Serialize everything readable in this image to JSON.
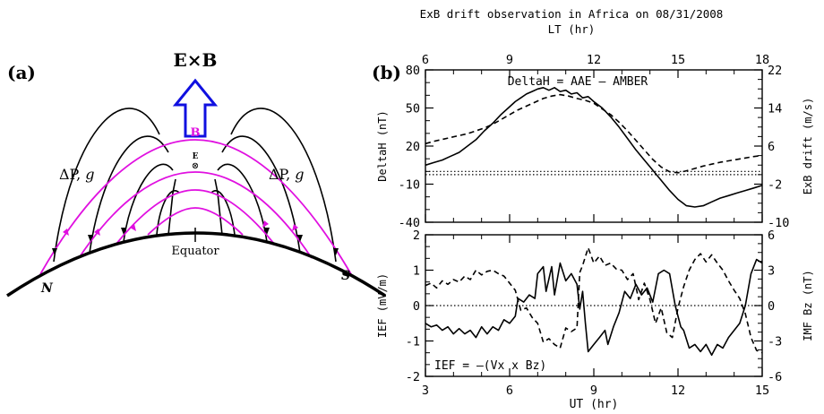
{
  "panel_a": {
    "label": "(a)",
    "exb_label": "E×B",
    "b_label": "B",
    "e_label": "E",
    "e_symbol": "⊗",
    "left_label_dp": "ΔP, ",
    "left_label_g": "g",
    "right_label_dp": "ΔP, ",
    "right_label_g": "g",
    "equator_label": "Equator",
    "north_label": "N",
    "south_label": "S",
    "colors": {
      "field_line": "#000000",
      "magenta_line": "#e010e0",
      "arrow": "#1010e0"
    }
  },
  "panel_b": {
    "label": "(b)"
  },
  "chart_data": [
    {
      "type": "line",
      "title": "ExB drift observation in Africa on 08/31/2008",
      "top_axis_label": "LT (hr)",
      "top_ticks": [
        "6",
        "9",
        "12",
        "15",
        "18"
      ],
      "annotation": "DeltaH = AAE – AMBER",
      "ylabel": "DeltaH (nT)",
      "ylabel_right": "ExB drift (m/s)",
      "ylim": [
        -40,
        80
      ],
      "y_ticks": [
        "80",
        "50",
        "20",
        "-10",
        "-40"
      ],
      "y2lim": [
        -10,
        22
      ],
      "y2_ticks": [
        "22",
        "14",
        "6",
        "-2",
        "-10"
      ],
      "xlim": [
        3,
        15
      ],
      "reference_lines": {
        "deltah_zero": 0,
        "drift_zero": 0
      },
      "series": [
        {
          "style": "solid",
          "axis": "left",
          "x": [
            3.0,
            3.3,
            3.6,
            3.9,
            4.2,
            4.5,
            4.8,
            5.1,
            5.4,
            5.7,
            6.0,
            6.2,
            6.4,
            6.6,
            6.8,
            7.0,
            7.2,
            7.4,
            7.6,
            7.8,
            8.0,
            8.2,
            8.4,
            8.6,
            8.8,
            9.0,
            9.3,
            9.6,
            9.9,
            10.2,
            10.5,
            10.8,
            11.1,
            11.4,
            11.7,
            12.0,
            12.3,
            12.6,
            12.9,
            13.2,
            13.5,
            13.8,
            14.1,
            14.4,
            14.7,
            15.0
          ],
          "y": [
            5,
            7,
            9,
            12,
            15,
            20,
            25,
            32,
            38,
            45,
            51,
            55,
            58,
            61,
            63,
            65,
            66,
            64,
            66,
            63,
            64,
            61,
            62,
            58,
            59,
            55,
            50,
            43,
            35,
            26,
            17,
            9,
            1,
            -7,
            -15,
            -22,
            -27,
            -28,
            -27,
            -24,
            -21,
            -19,
            -17,
            -15,
            -13,
            -11
          ]
        },
        {
          "style": "dashed",
          "axis": "right",
          "x": [
            3.0,
            3.3,
            3.6,
            3.9,
            4.2,
            4.5,
            4.8,
            5.1,
            5.4,
            5.7,
            6.0,
            6.3,
            6.6,
            6.9,
            7.2,
            7.5,
            7.8,
            8.1,
            8.4,
            8.7,
            9.0,
            9.3,
            9.6,
            9.9,
            10.2,
            10.5,
            10.8,
            11.1,
            11.4,
            11.7,
            12.0,
            12.3,
            12.6,
            12.9,
            13.2,
            13.5,
            13.8,
            14.1,
            14.4,
            14.7,
            15.0
          ],
          "y": [
            6.5,
            7.0,
            7.4,
            7.8,
            8.2,
            8.6,
            9.2,
            9.8,
            10.6,
            11.6,
            12.6,
            13.6,
            14.4,
            15.2,
            16.0,
            16.5,
            16.8,
            16.5,
            16.0,
            15.6,
            15.0,
            13.8,
            12.6,
            11.0,
            9.2,
            7.2,
            5.2,
            3.2,
            1.6,
            0.6,
            0.4,
            0.8,
            1.3,
            1.8,
            2.2,
            2.6,
            2.9,
            3.2,
            3.5,
            3.8,
            4.0
          ]
        }
      ]
    },
    {
      "type": "line",
      "annotation": "IEF = –(Vx x Bz)",
      "xlabel": "UT (hr)",
      "x_ticks": [
        "3",
        "6",
        "9",
        "12",
        "15"
      ],
      "ylabel": "IEF (mV/m)",
      "ylabel_right": "IMF Bz (nT)",
      "ylim": [
        -2,
        2
      ],
      "y_ticks": [
        "2",
        "1",
        "0",
        "-1",
        "-2"
      ],
      "y2lim": [
        -6,
        6
      ],
      "y2_ticks": [
        "6",
        "3",
        "0",
        "-3",
        "-6"
      ],
      "xlim": [
        3,
        15
      ],
      "reference_lines": {
        "ief_zero": 0
      },
      "series": [
        {
          "style": "solid",
          "axis": "left",
          "x": [
            3.0,
            3.2,
            3.4,
            3.6,
            3.8,
            4.0,
            4.2,
            4.4,
            4.6,
            4.8,
            5.0,
            5.2,
            5.4,
            5.6,
            5.8,
            6.0,
            6.2,
            6.3,
            6.5,
            6.7,
            6.9,
            7.0,
            7.2,
            7.3,
            7.5,
            7.6,
            7.8,
            8.0,
            8.2,
            8.4,
            8.5,
            8.6,
            8.7,
            8.8,
            9.0,
            9.2,
            9.4,
            9.5,
            9.7,
            9.9,
            10.1,
            10.3,
            10.5,
            10.7,
            10.9,
            11.1,
            11.3,
            11.5,
            11.7,
            11.9,
            12.1,
            12.2,
            12.4,
            12.6,
            12.8,
            13.0,
            13.2,
            13.4,
            13.6,
            13.8,
            14.0,
            14.2,
            14.4,
            14.6,
            14.8,
            15.0
          ],
          "y": [
            -0.5,
            -0.6,
            -0.55,
            -0.7,
            -0.6,
            -0.8,
            -0.65,
            -0.8,
            -0.7,
            -0.9,
            -0.6,
            -0.8,
            -0.6,
            -0.7,
            -0.4,
            -0.5,
            -0.3,
            0.2,
            0.1,
            0.3,
            0.2,
            0.9,
            1.1,
            0.4,
            1.1,
            0.3,
            1.2,
            0.7,
            0.9,
            0.6,
            -0.1,
            0.4,
            -0.5,
            -1.3,
            -1.1,
            -0.9,
            -0.7,
            -1.1,
            -0.6,
            -0.2,
            0.4,
            0.2,
            0.6,
            0.3,
            0.5,
            0.1,
            0.9,
            1.0,
            0.9,
            0.0,
            -0.6,
            -0.7,
            -1.2,
            -1.1,
            -1.3,
            -1.1,
            -1.4,
            -1.1,
            -1.2,
            -0.9,
            -0.7,
            -0.5,
            0.0,
            0.9,
            1.3,
            1.2
          ]
        },
        {
          "style": "dashed",
          "axis": "right",
          "x": [
            3.0,
            3.2,
            3.4,
            3.6,
            3.8,
            4.0,
            4.2,
            4.4,
            4.6,
            4.8,
            5.0,
            5.2,
            5.4,
            5.6,
            5.8,
            6.0,
            6.2,
            6.4,
            6.6,
            6.8,
            7.0,
            7.2,
            7.4,
            7.6,
            7.8,
            8.0,
            8.2,
            8.4,
            8.5,
            8.6,
            8.8,
            9.0,
            9.2,
            9.4,
            9.6,
            9.8,
            10.0,
            10.2,
            10.4,
            10.6,
            10.8,
            11.0,
            11.2,
            11.4,
            11.6,
            11.8,
            12.0,
            12.2,
            12.4,
            12.6,
            12.8,
            13.0,
            13.2,
            13.4,
            13.6,
            13.8,
            14.0,
            14.2,
            14.4,
            14.6,
            14.8,
            15.0
          ],
          "y": [
            1.7,
            1.9,
            1.5,
            2.1,
            1.8,
            2.2,
            2.0,
            2.5,
            2.2,
            3.0,
            2.6,
            2.9,
            3.0,
            2.7,
            2.5,
            1.9,
            1.3,
            -0.4,
            -0.2,
            -1.0,
            -1.5,
            -3.1,
            -2.8,
            -3.3,
            -3.6,
            -1.9,
            -2.2,
            -1.9,
            2.8,
            3.4,
            4.9,
            3.6,
            4.2,
            3.4,
            3.6,
            3.1,
            3.0,
            2.2,
            2.7,
            0.5,
            1.9,
            0.5,
            -1.5,
            -0.2,
            -2.3,
            -2.7,
            -0.2,
            1.6,
            3.0,
            3.9,
            4.4,
            3.7,
            4.3,
            3.6,
            3.0,
            2.1,
            1.3,
            0.6,
            -0.7,
            -2.7,
            -3.8,
            -4.0
          ]
        }
      ]
    }
  ]
}
